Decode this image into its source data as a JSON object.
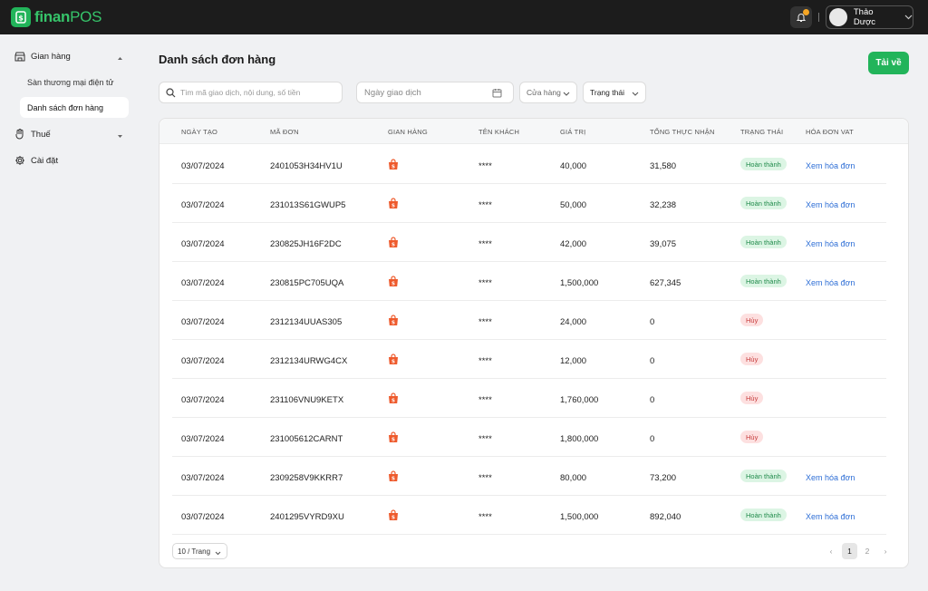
{
  "brand": {
    "name_a": "finan",
    "name_b": "POS"
  },
  "user": {
    "name": "Thảo Dược"
  },
  "sidebar": {
    "store_label": "Gian hàng",
    "sub_ecommerce": "Sàn thương mại điện tử",
    "sub_orders": "Danh sách đơn hàng",
    "tax_label": "Thuế",
    "settings_label": "Cài đặt"
  },
  "main": {
    "title": "Danh sách đơn hàng",
    "download_label": "Tải về",
    "search_placeholder": "Tìm mã giao dịch, nội dung, số tiền",
    "date_placeholder": "Ngày giao dịch",
    "store_filter": "Cửa hàng",
    "status_filter": "Trạng thái"
  },
  "table": {
    "headers": [
      "NGÀY TẠO",
      "MÃ ĐƠN",
      "GIAN HÀNG",
      "TÊN KHÁCH",
      "GIÁ TRỊ",
      "TỔNG THỰC NHẬN",
      "TRẠNG THÁI",
      "HÓA ĐƠN VAT"
    ],
    "rows": [
      {
        "date": "03/07/2024",
        "code": "2401053H34HV1U",
        "customer": "****",
        "value": "40,000",
        "received": "31,580",
        "status": "Hoàn thành",
        "status_type": "ok",
        "vat": "Xem hóa đơn"
      },
      {
        "date": "03/07/2024",
        "code": "231013S61GWUP5",
        "customer": "****",
        "value": "50,000",
        "received": "32,238",
        "status": "Hoàn thành",
        "status_type": "ok",
        "vat": "Xem hóa đơn"
      },
      {
        "date": "03/07/2024",
        "code": "230825JH16F2DC",
        "customer": "****",
        "value": "42,000",
        "received": "39,075",
        "status": "Hoàn thành",
        "status_type": "ok",
        "vat": "Xem hóa đơn"
      },
      {
        "date": "03/07/2024",
        "code": "230815PC705UQA",
        "customer": "****",
        "value": "1,500,000",
        "received": "627,345",
        "status": "Hoàn thành",
        "status_type": "ok",
        "vat": "Xem hóa đơn"
      },
      {
        "date": "03/07/2024",
        "code": "2312134UUAS305",
        "customer": "****",
        "value": "24,000",
        "received": "0",
        "status": "Hủy",
        "status_type": "cancel",
        "vat": ""
      },
      {
        "date": "03/07/2024",
        "code": "2312134URWG4CX",
        "customer": "****",
        "value": "12,000",
        "received": "0",
        "status": "Hủy",
        "status_type": "cancel",
        "vat": ""
      },
      {
        "date": "03/07/2024",
        "code": "231106VNU9KETX",
        "customer": "****",
        "value": "1,760,000",
        "received": "0",
        "status": "Hủy",
        "status_type": "cancel",
        "vat": ""
      },
      {
        "date": "03/07/2024",
        "code": "231005612CARNT",
        "customer": "****",
        "value": "1,800,000",
        "received": "0",
        "status": "Hủy",
        "status_type": "cancel",
        "vat": ""
      },
      {
        "date": "03/07/2024",
        "code": "2309258V9KKRR7",
        "customer": "****",
        "value": "80,000",
        "received": "73,200",
        "status": "Hoàn thành",
        "status_type": "ok",
        "vat": "Xem hóa đơn"
      },
      {
        "date": "03/07/2024",
        "code": "2401295VYRD9XU",
        "customer": "****",
        "value": "1,500,000",
        "received": "892,040",
        "status": "Hoàn thành",
        "status_type": "ok",
        "vat": "Xem hóa đơn"
      }
    ]
  },
  "pagination": {
    "per_page": "10 / Trang",
    "prev": "‹",
    "page1": "1",
    "page2": "2",
    "next": "›"
  },
  "colors": {
    "brand_green": "#22b45a",
    "link_blue": "#2f6fd6",
    "shop_orange": "#ee5a2c"
  }
}
